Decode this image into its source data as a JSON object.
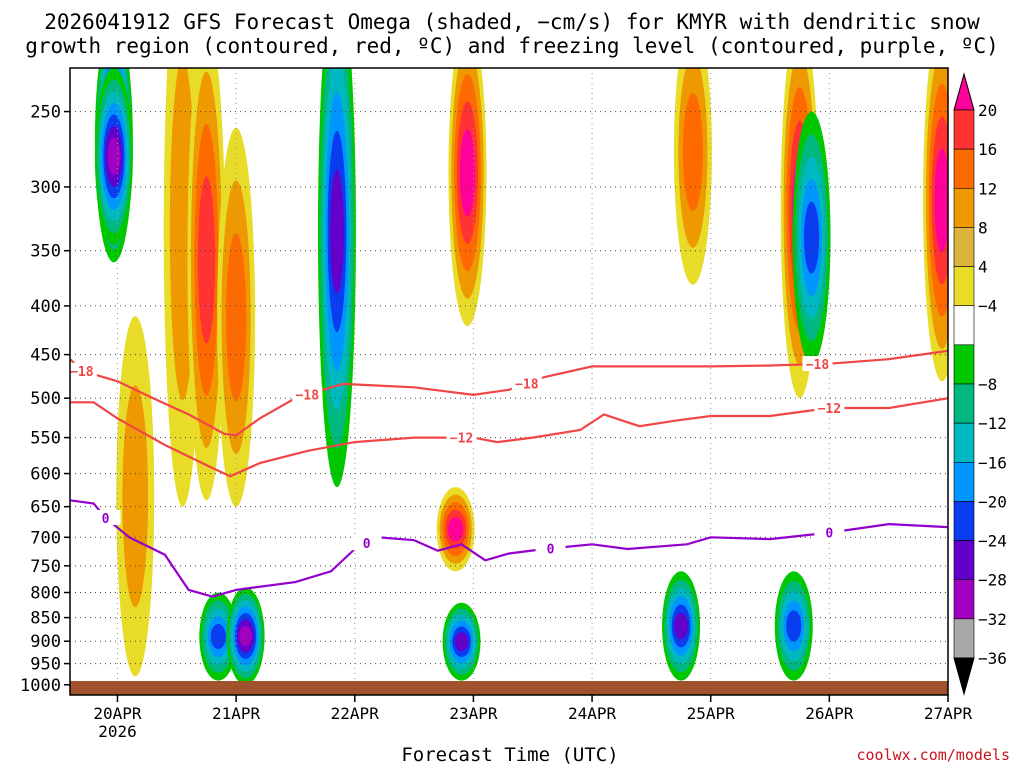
{
  "header": {
    "title_line1": "2026041912 GFS Forecast Omega (shaded, −cm/s) for KMYR with dendritic snow",
    "title_line2": "growth region (contoured, red, ºC) and freezing level (contoured, purple, ºC)"
  },
  "footer": {
    "credit": "coolwx.com/models"
  },
  "chart_data": {
    "type": "heatmap",
    "title": "2026041912 GFS Forecast Omega (shaded, −cm/s) for KMYR with dendritic snow growth region (contoured, red, ºC) and freezing level (contoured, purple, ºC)",
    "xlabel": "Forecast Time (UTC)",
    "ylabel": "",
    "x_range_days": [
      -0.4,
      7.0
    ],
    "y_levels": [
      1000,
      950,
      900,
      850,
      800,
      750,
      700,
      650,
      600,
      550,
      500,
      450,
      400,
      350,
      300,
      250
    ],
    "y_tick_labels": [
      "250",
      "300",
      "350",
      "400",
      "450",
      "500",
      "550",
      "600",
      "650",
      "700",
      "750",
      "800",
      "850",
      "900",
      "950",
      "1000"
    ],
    "x_tick_labels": [
      "20APR",
      "21APR",
      "22APR",
      "23APR",
      "24APR",
      "25APR",
      "26APR",
      "27APR"
    ],
    "x_tick_sublabels": [
      "2026",
      "",
      "",
      "",
      "",
      "",
      "",
      ""
    ],
    "colorbar": {
      "labels": [
        "20",
        "16",
        "12",
        "8",
        "4",
        "−4",
        "−8",
        "−12",
        "−16",
        "−20",
        "−24",
        "−28",
        "−32",
        "−36"
      ],
      "colors": [
        "#ff0099",
        "#ff3333",
        "#ff6a00",
        "#ee9900",
        "#dcb43c",
        "#e8dc28",
        "#ffffff",
        "#00c800",
        "#00b880",
        "#00b8c0",
        "#0096ff",
        "#0a3cf0",
        "#6400cc",
        "#a000c0",
        "#a8a8a8",
        "#000000"
      ]
    },
    "contours": [
      {
        "name": "dgz top",
        "color": "#f04646",
        "label": "−18",
        "points": [
          [
            -0.4,
            455
          ],
          [
            -0.3,
            468
          ],
          [
            0.0,
            480
          ],
          [
            0.3,
            500
          ],
          [
            0.6,
            520
          ],
          [
            0.9,
            545
          ],
          [
            1.0,
            547
          ],
          [
            1.2,
            525
          ],
          [
            1.5,
            500
          ],
          [
            1.9,
            483
          ],
          [
            2.5,
            487
          ],
          [
            3.0,
            496
          ],
          [
            3.3,
            490
          ],
          [
            3.6,
            475
          ],
          [
            4.0,
            463
          ],
          [
            4.5,
            463
          ],
          [
            5.0,
            463
          ],
          [
            5.5,
            462
          ],
          [
            6.0,
            460
          ],
          [
            6.5,
            455
          ],
          [
            7.0,
            446
          ]
        ],
        "labels_at": [
          -0.3,
          1.6,
          3.45,
          5.9
        ]
      },
      {
        "name": "dgz bottom",
        "color": "#f04646",
        "label": "−12",
        "points": [
          [
            -0.4,
            505
          ],
          [
            -0.2,
            505
          ],
          [
            0.0,
            525
          ],
          [
            0.4,
            560
          ],
          [
            0.8,
            592
          ],
          [
            0.95,
            604
          ],
          [
            1.2,
            585
          ],
          [
            1.6,
            568
          ],
          [
            2.0,
            556
          ],
          [
            2.5,
            550
          ],
          [
            3.0,
            550
          ],
          [
            3.2,
            556
          ],
          [
            3.5,
            550
          ],
          [
            3.9,
            540
          ],
          [
            4.1,
            520
          ],
          [
            4.4,
            535
          ],
          [
            4.7,
            528
          ],
          [
            5.0,
            522
          ],
          [
            5.5,
            522
          ],
          [
            6.0,
            512
          ],
          [
            6.5,
            512
          ],
          [
            7.0,
            500
          ]
        ],
        "labels_at": [
          2.9,
          6.0
        ]
      },
      {
        "name": "freezing level",
        "color": "#9400cc",
        "label": "0",
        "points": [
          [
            -0.4,
            640
          ],
          [
            -0.2,
            645
          ],
          [
            -0.1,
            668
          ],
          [
            0.1,
            700
          ],
          [
            0.4,
            730
          ],
          [
            0.6,
            795
          ],
          [
            0.8,
            808
          ],
          [
            1.0,
            795
          ],
          [
            1.5,
            780
          ],
          [
            1.8,
            760
          ],
          [
            2.0,
            720
          ],
          [
            2.2,
            700
          ],
          [
            2.5,
            705
          ],
          [
            2.7,
            723
          ],
          [
            2.9,
            712
          ],
          [
            3.1,
            740
          ],
          [
            3.3,
            728
          ],
          [
            3.6,
            720
          ],
          [
            4.0,
            712
          ],
          [
            4.3,
            720
          ],
          [
            4.8,
            712
          ],
          [
            5.0,
            700
          ],
          [
            5.5,
            703
          ],
          [
            6.0,
            692
          ],
          [
            6.5,
            678
          ],
          [
            7.0,
            683
          ]
        ],
        "labels_at": [
          -0.1,
          2.1,
          3.65,
          6.0
        ]
      }
    ],
    "shaded_blobs_omega": [
      {
        "t": -0.03,
        "p0": 200,
        "p1": 360,
        "v": -36
      },
      {
        "t": -0.03,
        "p0": 225,
        "p1": 345,
        "v": -28
      },
      {
        "t": 0.15,
        "p0": 410,
        "p1": 980,
        "v": 8
      },
      {
        "t": 0.55,
        "p0": 170,
        "p1": 650,
        "v": 8
      },
      {
        "t": 0.75,
        "p0": 200,
        "p1": 640,
        "v": 16
      },
      {
        "t": 1.0,
        "p0": 260,
        "p1": 650,
        "v": 12
      },
      {
        "t": 0.85,
        "p0": 800,
        "p1": 990,
        "v": -20
      },
      {
        "t": 1.08,
        "p0": 790,
        "p1": 1000,
        "v": -28
      },
      {
        "t": 1.85,
        "p0": 180,
        "p1": 620,
        "v": -24
      },
      {
        "t": 2.85,
        "p0": 620,
        "p1": 760,
        "v": 20
      },
      {
        "t": 2.9,
        "p0": 820,
        "p1": 990,
        "v": -24
      },
      {
        "t": 2.95,
        "p0": 200,
        "p1": 420,
        "v": 20
      },
      {
        "t": 4.85,
        "p0": 200,
        "p1": 380,
        "v": 12
      },
      {
        "t": 4.75,
        "p0": 760,
        "p1": 990,
        "v": -24
      },
      {
        "t": 5.75,
        "p0": 200,
        "p1": 500,
        "v": 20
      },
      {
        "t": 5.85,
        "p0": 250,
        "p1": 460,
        "v": -20
      },
      {
        "t": 5.7,
        "p0": 760,
        "p1": 990,
        "v": -20
      },
      {
        "t": 6.95,
        "p0": 200,
        "p1": 480,
        "v": 20
      }
    ]
  }
}
